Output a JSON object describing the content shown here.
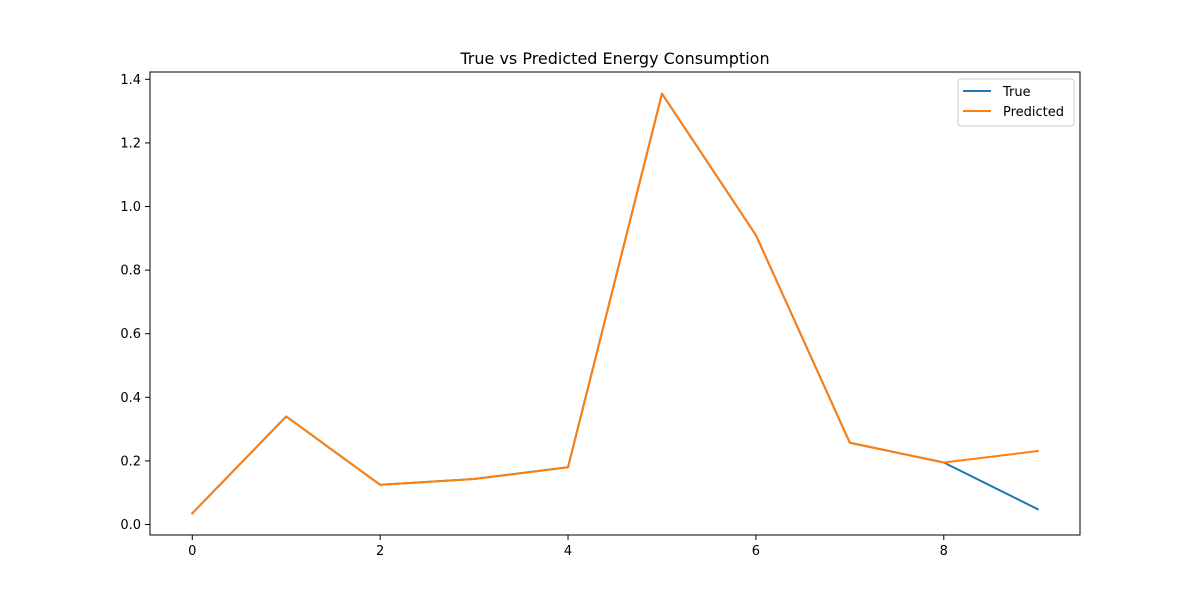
{
  "chart_data": {
    "type": "line",
    "title": "True vs Predicted Energy Consumption",
    "xlabel": "",
    "ylabel": "",
    "x": [
      0,
      1,
      2,
      3,
      4,
      5,
      6,
      7,
      8,
      9
    ],
    "series": [
      {
        "name": "True",
        "color": "#1f77b4",
        "values": [
          0.035,
          0.34,
          0.125,
          0.143,
          0.18,
          1.355,
          0.91,
          0.257,
          0.195,
          0.048
        ]
      },
      {
        "name": "Predicted",
        "color": "#ff7f0e",
        "values": [
          0.035,
          0.34,
          0.125,
          0.143,
          0.18,
          1.355,
          0.91,
          0.257,
          0.195,
          0.231
        ]
      }
    ],
    "xlim": [
      -0.45,
      9.45
    ],
    "ylim": [
      -0.033,
      1.423
    ],
    "xticks": [
      0,
      2,
      4,
      6,
      8
    ],
    "xtick_labels": [
      "0",
      "2",
      "4",
      "6",
      "8"
    ],
    "yticks": [
      0.0,
      0.2,
      0.4,
      0.6,
      0.8,
      1.0,
      1.2,
      1.4
    ],
    "ytick_labels": [
      "0.0",
      "0.2",
      "0.4",
      "0.6",
      "0.8",
      "1.0",
      "1.2",
      "1.4"
    ],
    "legend_position": "top-right",
    "grid": false
  }
}
